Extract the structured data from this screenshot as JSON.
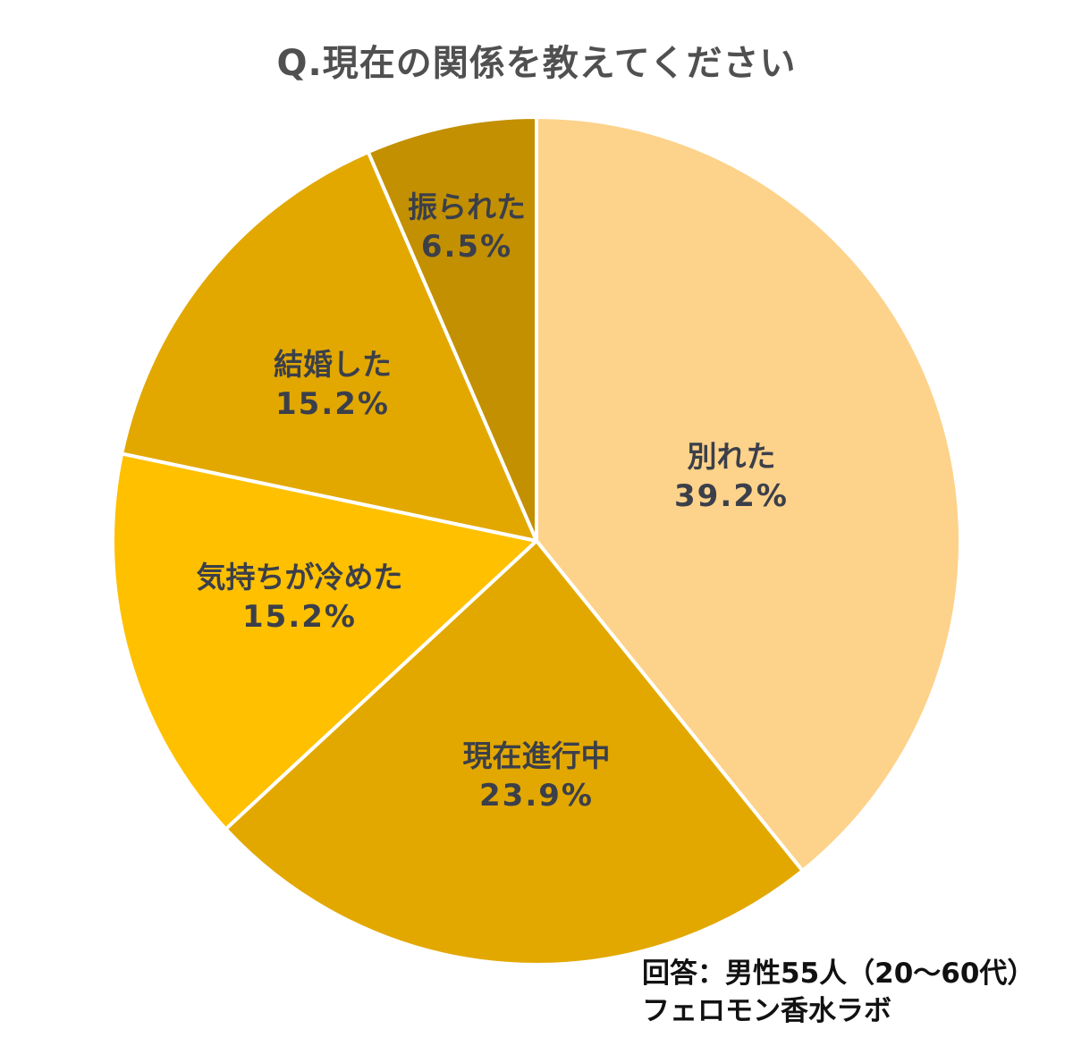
{
  "title": "Q.現在の関係を教えてください",
  "note": {
    "respondents": "回答：男性55人（20〜60代）",
    "source": "フェロモン香水ラボ"
  },
  "chart_data": {
    "type": "pie",
    "title": "Q.現在の関係を教えてください",
    "categories": [
      "別れた",
      "現在進行中",
      "気持ちが冷めた",
      "結婚した",
      "振られた"
    ],
    "values": [
      39.2,
      23.9,
      15.2,
      15.2,
      6.5
    ],
    "unit": "%",
    "colors": [
      "#FDD28A",
      "#E2A800",
      "#FFC000",
      "#E2A800",
      "#C29000"
    ],
    "start_angle": "12 o'clock",
    "direction": "clockwise",
    "labels": [
      {
        "name": "別れた",
        "pct": "39.2%"
      },
      {
        "name": "現在進行中",
        "pct": "23.9%"
      },
      {
        "name": "気持ちが冷めた",
        "pct": "15.2%"
      },
      {
        "name": "結婚した",
        "pct": "15.2%"
      },
      {
        "name": "振られた",
        "pct": "6.5%"
      }
    ],
    "annotations": [
      "回答：男性55人（20〜60代）",
      "フェロモン香水ラボ"
    ],
    "legend": "none"
  }
}
